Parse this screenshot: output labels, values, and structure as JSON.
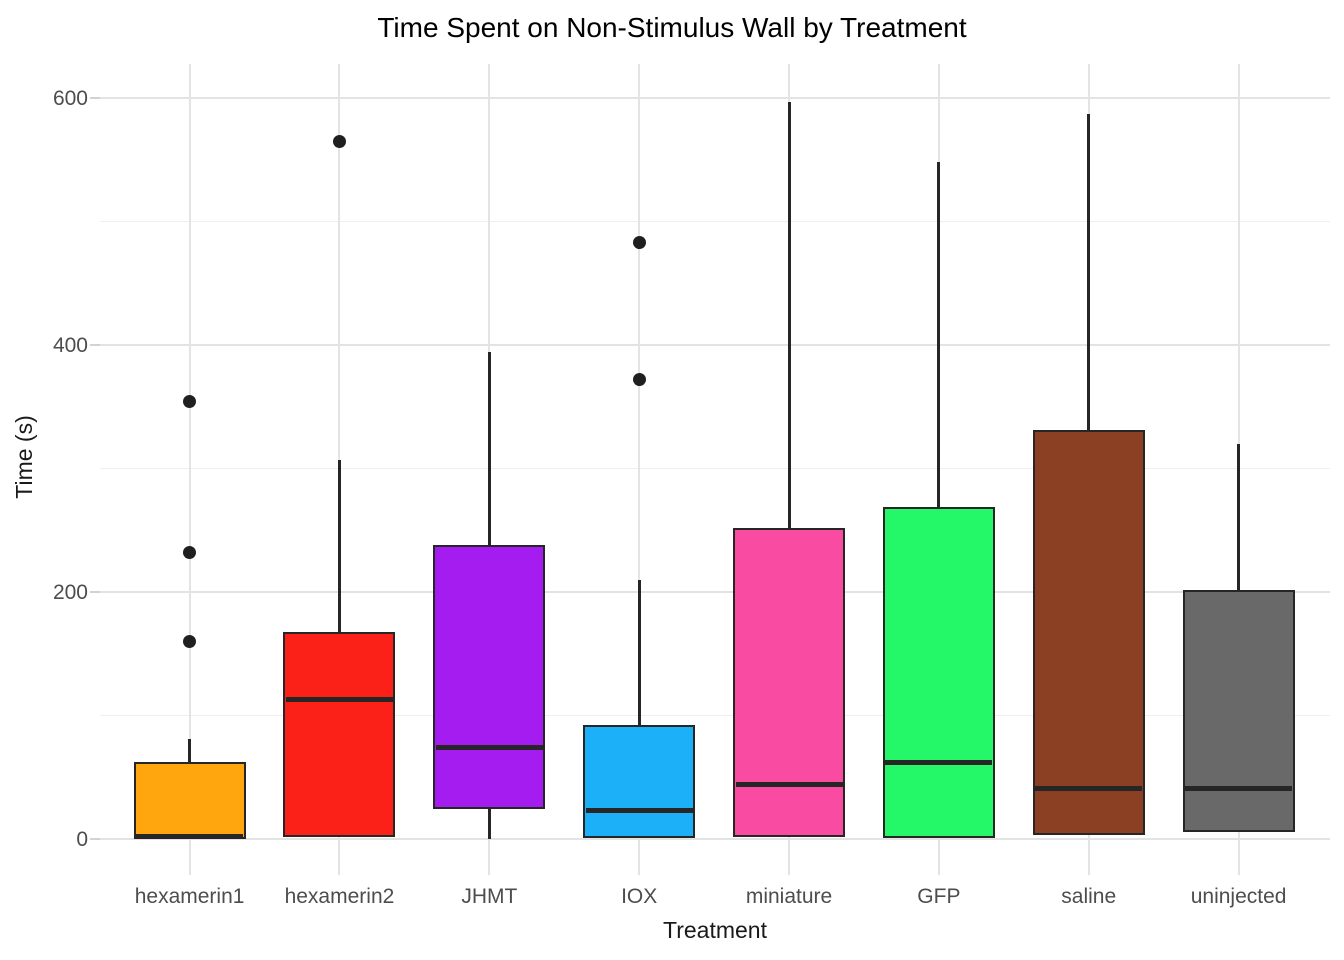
{
  "title": "Time Spent on Non-Stimulus Wall by Treatment",
  "chart_data": {
    "type": "boxplot",
    "title": "Time Spent on Non-Stimulus Wall by Treatment",
    "xlabel": "Treatment",
    "ylabel": "Time (s)",
    "ylim": [
      -28,
      627
    ],
    "yticks": [
      0,
      200,
      400,
      600
    ],
    "minor_gridlines": [
      100,
      300,
      500
    ],
    "grid": true,
    "legend": "none",
    "categories": [
      "hexamerin1",
      "hexamerin2",
      "JHMT",
      "IOX",
      "miniature",
      "GFP",
      "saline",
      "uninjected"
    ],
    "series": [
      {
        "name": "hexamerin1",
        "fill": "#FFA60F",
        "q1": 0,
        "median": 2,
        "q3": 62,
        "whisker_low": 0,
        "whisker_high": 81,
        "outliers": [
          160,
          232,
          354
        ]
      },
      {
        "name": "hexamerin2",
        "fill": "#FB2018",
        "q1": 2,
        "median": 113,
        "q3": 168,
        "whisker_low": 2,
        "whisker_high": 307,
        "outliers": [
          565
        ]
      },
      {
        "name": "JHMT",
        "fill": "#A51CF0",
        "q1": 24,
        "median": 74,
        "q3": 238,
        "whisker_low": 0,
        "whisker_high": 394,
        "outliers": []
      },
      {
        "name": "IOX",
        "fill": "#1BB0F7",
        "q1": 1,
        "median": 23,
        "q3": 92,
        "whisker_low": 1,
        "whisker_high": 210,
        "outliers": [
          372,
          483
        ]
      },
      {
        "name": "miniature",
        "fill": "#FA4BA3",
        "q1": 2,
        "median": 44,
        "q3": 252,
        "whisker_low": 2,
        "whisker_high": 597,
        "outliers": []
      },
      {
        "name": "GFP",
        "fill": "#24F868",
        "q1": 1,
        "median": 62,
        "q3": 269,
        "whisker_low": 1,
        "whisker_high": 548,
        "outliers": []
      },
      {
        "name": "saline",
        "fill": "#8C4023",
        "q1": 3,
        "median": 41,
        "q3": 331,
        "whisker_low": 3,
        "whisker_high": 587,
        "outliers": []
      },
      {
        "name": "uninjected",
        "fill": "#696969",
        "q1": 6,
        "median": 41,
        "q3": 202,
        "whisker_low": 6,
        "whisker_high": 320,
        "outliers": []
      }
    ],
    "colors": {
      "box_border": "#262626",
      "outlier": "#1f1f1f",
      "gridline_major": "#e3e3e3",
      "gridline_minor": "#efefef",
      "tick_label": "#4d4d4d",
      "axis_title": "#1a1a1a",
      "title": "#000000",
      "background": "#ffffff"
    }
  }
}
